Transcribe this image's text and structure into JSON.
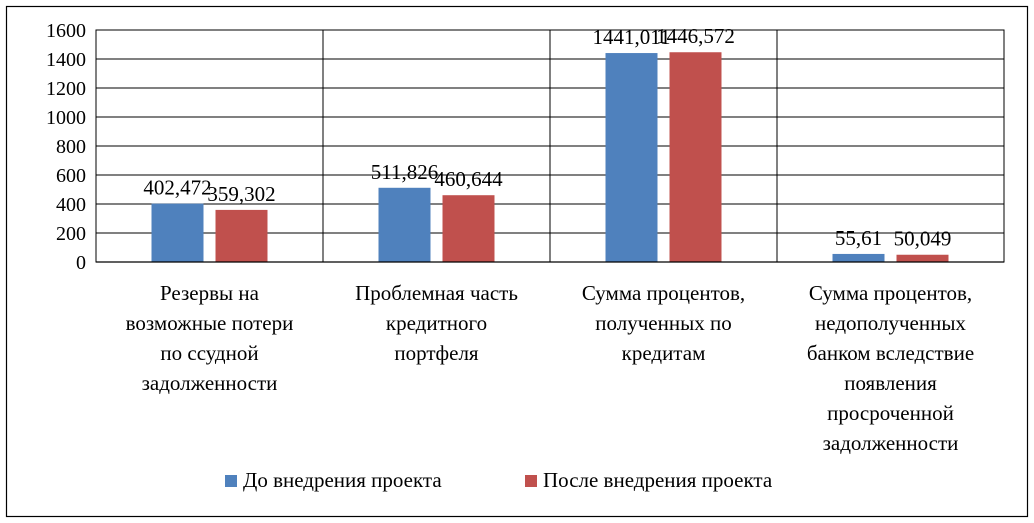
{
  "chart_data": {
    "type": "bar",
    "title": "",
    "xlabel": "",
    "ylabel": "",
    "ylim": [
      0,
      1600
    ],
    "yticks": [
      0,
      200,
      400,
      600,
      800,
      1000,
      1200,
      1400,
      1600
    ],
    "grid": true,
    "legend_position": "bottom",
    "categories": [
      "Резервы на возможные потери по ссудной задолженности",
      "Проблемная часть кредитного портфеля",
      "Сумма процентов, полученных по кредитам",
      "Сумма процентов, недополученных банком вследствие появления просроченной задолженности"
    ],
    "category_lines": [
      [
        "Резервы на",
        "возможные потери",
        "по ссудной",
        "задолженности"
      ],
      [
        "Проблемная часть",
        "кредитного",
        "портфеля"
      ],
      [
        "Сумма процентов,",
        "полученных по",
        "кредитам"
      ],
      [
        "Сумма процентов,",
        "недополученных",
        "банком вследствие",
        "появления",
        "просроченной",
        "задолженности"
      ]
    ],
    "series": [
      {
        "name": "До внедрения проекта",
        "color": "#4F81BD",
        "values": [
          402.472,
          511.826,
          1441.011,
          55.61
        ],
        "labels": [
          "402,472",
          "511,826",
          "1441,011",
          "55,61"
        ]
      },
      {
        "name": "После внедрения проекта",
        "color": "#C0504D",
        "values": [
          359.302,
          460.644,
          1446.572,
          50.049
        ],
        "labels": [
          "359,302",
          "460,644",
          "1446,572",
          "50,049"
        ]
      }
    ]
  }
}
